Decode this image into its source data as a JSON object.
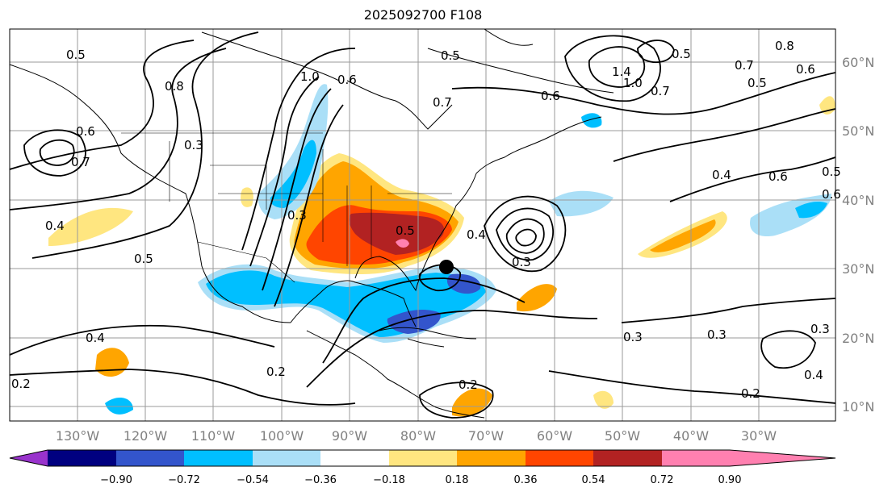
{
  "title": "2025092700 F108",
  "map": {
    "lon_ticks": [
      "130°W",
      "120°W",
      "110°W",
      "100°W",
      "90°W",
      "80°W",
      "70°W",
      "60°W",
      "50°W",
      "40°W",
      "30°W"
    ],
    "lat_ticks": [
      "60°N",
      "50°N",
      "40°N",
      "30°N",
      "20°N",
      "10°N"
    ],
    "extent": {
      "lon_min": -140,
      "lon_max": -20,
      "lat_min": 8,
      "lat_max": 65
    },
    "marker": {
      "name": "storm-center",
      "lon": -75.5,
      "lat": 30.3
    },
    "contour_labels": [
      "0.5",
      "0.8",
      "1.0",
      "0.6",
      "0.5",
      "0.7",
      "0.6",
      "0.8",
      "0.7",
      "1.4",
      "1.0",
      "0.5",
      "0.7",
      "0.6",
      "0.5",
      "0.6",
      "0.7",
      "0.3",
      "0.4",
      "0.5",
      "0.3",
      "0.5",
      "0.4",
      "0.3",
      "0.4",
      "0.6",
      "0.5",
      "0.6",
      "0.4",
      "0.2",
      "0.2",
      "0.3",
      "0.3",
      "0.2",
      "0.3",
      "0.4",
      "0.2"
    ]
  },
  "colorbar": {
    "levels": [
      "−0.90",
      "−0.72",
      "−0.54",
      "−0.36",
      "−0.18",
      "0.18",
      "0.36",
      "0.54",
      "0.72",
      "0.90"
    ],
    "colors": [
      "#9933cc",
      "#000080",
      "#3355cc",
      "#00bfff",
      "#aadff7",
      "#ffffff",
      "#ffe680",
      "#ffa500",
      "#ff4500",
      "#b22222",
      "#ff80b0"
    ]
  }
}
